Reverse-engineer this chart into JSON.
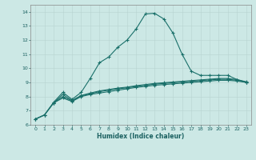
{
  "xlabel": "Humidex (Indice chaleur)",
  "xlim": [
    -0.5,
    23.5
  ],
  "ylim": [
    6,
    14.5
  ],
  "yticks": [
    6,
    7,
    8,
    9,
    10,
    11,
    12,
    13,
    14
  ],
  "xticks": [
    0,
    1,
    2,
    3,
    4,
    5,
    6,
    7,
    8,
    9,
    10,
    11,
    12,
    13,
    14,
    15,
    16,
    17,
    18,
    19,
    20,
    21,
    22,
    23
  ],
  "background_color": "#cce8e5",
  "grid_color": "#b8d4d0",
  "line_color": "#1a706a",
  "marker": "+",
  "markersize": 3.5,
  "linewidth": 0.8,
  "markeredgewidth": 0.8,
  "line1_x": [
    0,
    1,
    2,
    3,
    4,
    5,
    6,
    7,
    8,
    9,
    10,
    11,
    12,
    13,
    14,
    15,
    16,
    17,
    18,
    19,
    20,
    21,
    22,
    23
  ],
  "line1_y": [
    6.4,
    6.7,
    7.6,
    8.3,
    7.8,
    8.3,
    9.3,
    10.4,
    10.8,
    11.5,
    12.0,
    12.8,
    13.85,
    13.9,
    13.5,
    12.5,
    11.0,
    9.8,
    9.5,
    9.5,
    9.5,
    9.5,
    9.2,
    9.0
  ],
  "line2_x": [
    0,
    1,
    2,
    3,
    4,
    5,
    6,
    7,
    8,
    9,
    10,
    11,
    12,
    13,
    14,
    15,
    16,
    17,
    18,
    19,
    20,
    21,
    22,
    23
  ],
  "line2_y": [
    6.4,
    6.7,
    7.55,
    7.9,
    7.65,
    8.0,
    8.15,
    8.25,
    8.35,
    8.45,
    8.55,
    8.65,
    8.72,
    8.8,
    8.85,
    8.9,
    8.95,
    9.0,
    9.05,
    9.1,
    9.15,
    9.15,
    9.1,
    9.0
  ],
  "line3_x": [
    0,
    1,
    2,
    3,
    4,
    5,
    6,
    7,
    8,
    9,
    10,
    11,
    12,
    13,
    14,
    15,
    16,
    17,
    18,
    19,
    20,
    21,
    22,
    23
  ],
  "line3_y": [
    6.4,
    6.7,
    7.55,
    8.0,
    7.7,
    8.05,
    8.2,
    8.35,
    8.45,
    8.55,
    8.62,
    8.72,
    8.8,
    8.88,
    8.93,
    8.98,
    9.03,
    9.08,
    9.13,
    9.18,
    9.22,
    9.22,
    9.15,
    9.02
  ],
  "line4_x": [
    2,
    3,
    4,
    5,
    6,
    7,
    8,
    9,
    10,
    11,
    12,
    13,
    14,
    15,
    16,
    17,
    18,
    19,
    20,
    21,
    22,
    23
  ],
  "line4_y": [
    7.55,
    8.15,
    7.72,
    8.08,
    8.25,
    8.4,
    8.5,
    8.6,
    8.67,
    8.77,
    8.85,
    8.93,
    8.98,
    9.03,
    9.08,
    9.13,
    9.18,
    9.23,
    9.28,
    9.28,
    9.2,
    9.05
  ]
}
